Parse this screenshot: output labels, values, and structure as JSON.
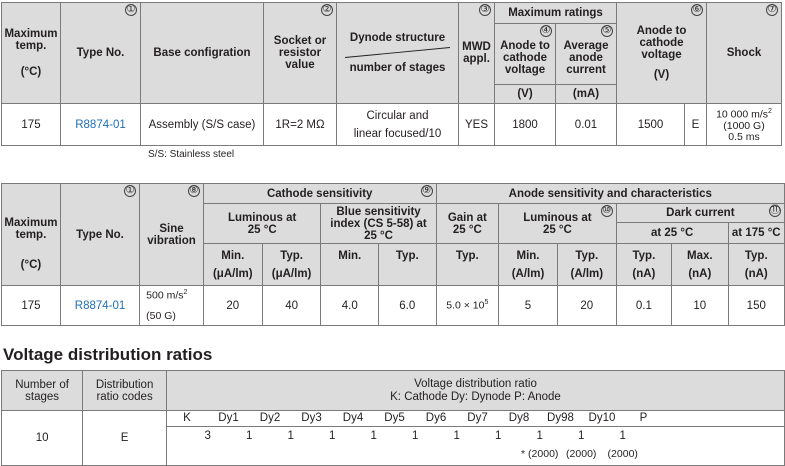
{
  "table1": {
    "h_max_temp": "Maximum temp.",
    "h_max_temp_unit": "(°C)",
    "h_type": "Type No.",
    "h_base": "Base configration",
    "h_socket": "Socket or resistor value",
    "h_dynode_top": "Dynode structure",
    "h_dynode_bottom": "number of stages",
    "h_mwd": "MWD appl.",
    "h_max_ratings": "Maximum ratings",
    "h_anode_cathode_v": "Anode to cathode voltage",
    "h_anode_cathode_v_unit": "(V)",
    "h_avg_anode_current": "Average anode current",
    "h_avg_anode_current_unit": "(mA)",
    "h_anode_cathode_v2": "Anode to cathode voltage",
    "h_anode_cathode_v2_unit": "(V)",
    "h_shock": "Shock",
    "marks": {
      "type": "①",
      "socket": "②",
      "mwd": "③",
      "ratings_v": "④",
      "ratings_i": "⑤",
      "anode_v": "⑥",
      "shock": "⑦"
    },
    "row": {
      "max_temp": "175",
      "type": "R8874-01",
      "base": "Assembly (S/S case)",
      "socket": "1R=2 MΩ",
      "dynode_1": "Circular and",
      "dynode_2": "linear focused/10",
      "mwd": "YES",
      "anode_cathode_v": "1800",
      "avg_current": "0.01",
      "anode_cathode_v2": "1500",
      "code": "E",
      "shock_1": "10 000 m/s",
      "shock_1_sup": "2",
      "shock_2": "(1000 G)",
      "shock_3": "0.5 ms"
    },
    "note": "S/S: Stainless steel"
  },
  "table2": {
    "h_max_temp": "Maximum temp.",
    "h_max_temp_unit": "(°C)",
    "h_type": "Type No.",
    "h_sine": "Sine vibration",
    "h_cathode_sens": "Cathode sensitivity",
    "h_luminous": "Luminous at 25 °C",
    "h_blue": "Blue sensitivity index (CS 5-58) at 25 °C",
    "h_anode_sens": "Anode sensitivity and characteristics",
    "h_gain": "Gain at 25 °C",
    "h_a_luminous": "Luminous at 25 °C",
    "h_dark": "Dark current",
    "h_dark_25": "at 25 °C",
    "h_dark_175": "at 175 °C",
    "sub": {
      "c_min": "Min.",
      "c_min_u": "(μA/lm)",
      "c_typ": "Typ.",
      "c_typ_u": "(μA/lm)",
      "b_min": "Min.",
      "b_typ": "Typ.",
      "g_typ": "Typ.",
      "a_min": "Min.",
      "a_min_u": "(A/lm)",
      "a_typ": "Typ.",
      "a_typ_u": "(A/lm)",
      "d_typ": "Typ.",
      "d_typ_u": "(nA)",
      "d_max": "Max.",
      "d_max_u": "(nA)",
      "d175_typ": "Typ.",
      "d175_typ_u": "(nA)"
    },
    "marks": {
      "type": "①",
      "sine": "⑧",
      "cathode": "⑨",
      "a_lum": "⑩",
      "dark": "⑪"
    },
    "row": {
      "max_temp": "175",
      "type": "R8874-01",
      "sine_1": "500 m/s",
      "sine_1_sup": "2",
      "sine_2": "(50 G)",
      "c_min": "20",
      "c_typ": "40",
      "b_min": "4.0",
      "b_typ": "6.0",
      "gain": "5.0 × 10",
      "gain_exp": "5",
      "a_min": "5",
      "a_typ": "20",
      "d_typ": "0.1",
      "d_max": "10",
      "d175_typ": "150"
    }
  },
  "vdr": {
    "title": "Voltage distribution ratios",
    "h_stages": "Number of stages",
    "h_codes": "Distribution ratio codes",
    "h_ratio": "Voltage distribution ratio",
    "h_ratio_legend": "K: Cathode  Dy: Dynode  P: Anode",
    "electrodes": [
      "K",
      "Dy1",
      "Dy2",
      "Dy3",
      "Dy4",
      "Dy5",
      "Dy6",
      "Dy7",
      "Dy8",
      "Dy98",
      "Dy10",
      "P"
    ],
    "ratios": [
      "3",
      "1",
      "1",
      "1",
      "1",
      "1",
      "1",
      "1",
      "1",
      "1",
      "1"
    ],
    "footnote": [
      "* (2000)",
      "(2000)",
      "(2000)"
    ],
    "stages": "10",
    "code": "E"
  }
}
